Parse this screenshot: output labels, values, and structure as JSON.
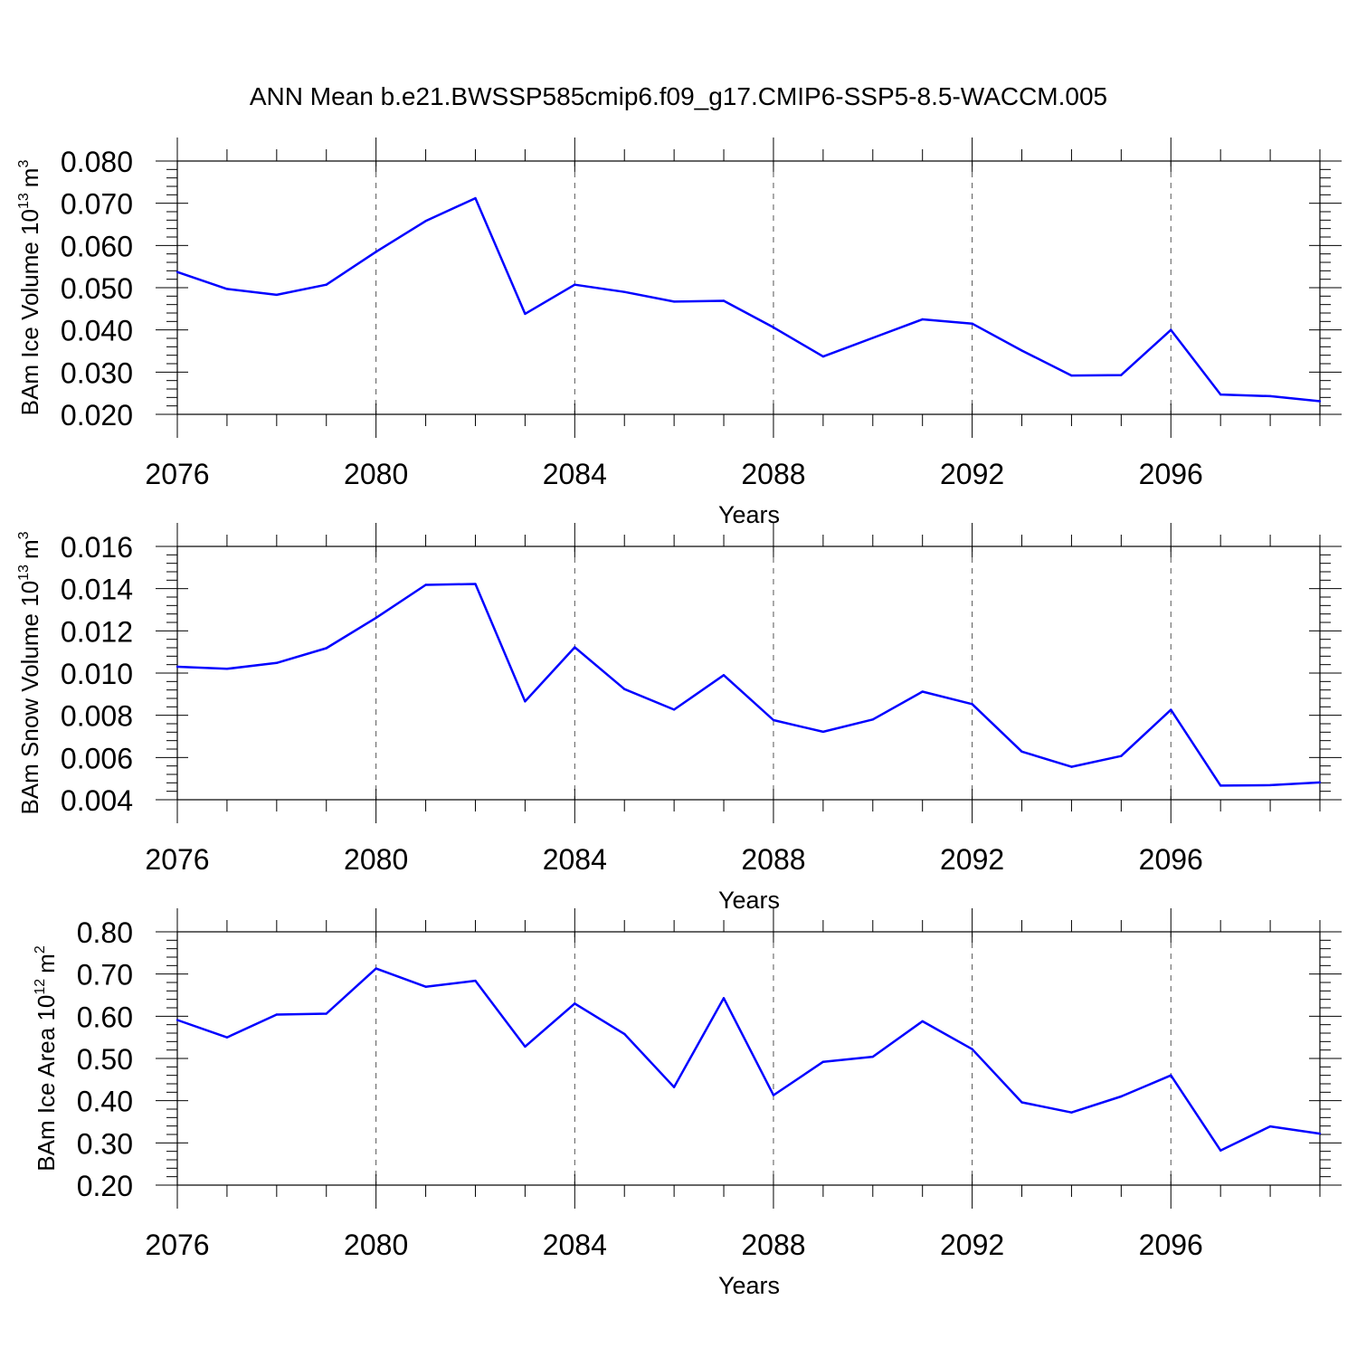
{
  "title": "ANN Mean b.e21.BWSSP585cmip6.f09_g17.CMIP6-SSP5-8.5-WACCM.005",
  "line_color": "#0000ff",
  "chart_data": [
    {
      "type": "line",
      "ylabel": {
        "text": "BAm Ice Volume 10",
        "sup": "13",
        "unit": "m",
        "unit_sup": "3"
      },
      "xlabel": "Years",
      "xlim": [
        2076,
        2099
      ],
      "ylim": [
        0.02,
        0.08
      ],
      "x_ticks": [
        2076,
        2080,
        2084,
        2088,
        2092,
        2096
      ],
      "x_tick_labels": [
        "2076",
        "2080",
        "2084",
        "2088",
        "2092",
        "2096"
      ],
      "y_tick_labels": [
        "0.020",
        "0.030",
        "0.040",
        "0.050",
        "0.060",
        "0.070",
        "0.080"
      ],
      "x": [
        2076,
        2077,
        2078,
        2079,
        2080,
        2081,
        2082,
        2083,
        2084,
        2085,
        2086,
        2087,
        2088,
        2089,
        2090,
        2091,
        2092,
        2093,
        2094,
        2095,
        2096,
        2097,
        2098,
        2099
      ],
      "values": [
        0.0537,
        0.0497,
        0.0483,
        0.0507,
        0.0585,
        0.0658,
        0.0712,
        0.0438,
        0.0507,
        0.049,
        0.0467,
        0.0469,
        0.0406,
        0.0337,
        0.0381,
        0.0425,
        0.0415,
        0.0351,
        0.0292,
        0.0293,
        0.04,
        0.0247,
        0.0243,
        0.0231
      ]
    },
    {
      "type": "line",
      "ylabel": {
        "text": "BAm Snow Volume 10",
        "sup": "13",
        "unit": "m",
        "unit_sup": "3"
      },
      "xlabel": "Years",
      "xlim": [
        2076,
        2099
      ],
      "ylim": [
        0.004,
        0.016
      ],
      "x_ticks": [
        2076,
        2080,
        2084,
        2088,
        2092,
        2096
      ],
      "x_tick_labels": [
        "2076",
        "2080",
        "2084",
        "2088",
        "2092",
        "2096"
      ],
      "y_tick_labels": [
        "0.004",
        "0.006",
        "0.008",
        "0.010",
        "0.012",
        "0.014",
        "0.016"
      ],
      "x": [
        2076,
        2077,
        2078,
        2079,
        2080,
        2081,
        2082,
        2083,
        2084,
        2085,
        2086,
        2087,
        2088,
        2089,
        2090,
        2091,
        2092,
        2093,
        2094,
        2095,
        2096,
        2097,
        2098,
        2099
      ],
      "values": [
        0.0103,
        0.0102,
        0.01048,
        0.01118,
        0.01262,
        0.01418,
        0.01422,
        0.00866,
        0.01122,
        0.00924,
        0.00827,
        0.0099,
        0.00777,
        0.00722,
        0.0078,
        0.00912,
        0.00853,
        0.00628,
        0.00556,
        0.00607,
        0.00826,
        0.00467,
        0.00469,
        0.00482
      ]
    },
    {
      "type": "line",
      "ylabel": {
        "text": "BAm Ice Area 10",
        "sup": "12",
        "unit": "m",
        "unit_sup": "2"
      },
      "xlabel": "Years",
      "xlim": [
        2076,
        2099
      ],
      "ylim": [
        0.2,
        0.8
      ],
      "x_ticks": [
        2076,
        2080,
        2084,
        2088,
        2092,
        2096
      ],
      "x_tick_labels": [
        "2076",
        "2080",
        "2084",
        "2088",
        "2092",
        "2096"
      ],
      "y_tick_labels": [
        "0.20",
        "0.30",
        "0.40",
        "0.50",
        "0.60",
        "0.70",
        "0.80"
      ],
      "x": [
        2076,
        2077,
        2078,
        2079,
        2080,
        2081,
        2082,
        2083,
        2084,
        2085,
        2086,
        2087,
        2088,
        2089,
        2090,
        2091,
        2092,
        2093,
        2094,
        2095,
        2096,
        2097,
        2098,
        2099
      ],
      "values": [
        0.591,
        0.55,
        0.604,
        0.606,
        0.713,
        0.67,
        0.684,
        0.528,
        0.63,
        0.558,
        0.432,
        0.643,
        0.413,
        0.492,
        0.504,
        0.588,
        0.522,
        0.396,
        0.372,
        0.41,
        0.46,
        0.282,
        0.339,
        0.322
      ]
    }
  ]
}
